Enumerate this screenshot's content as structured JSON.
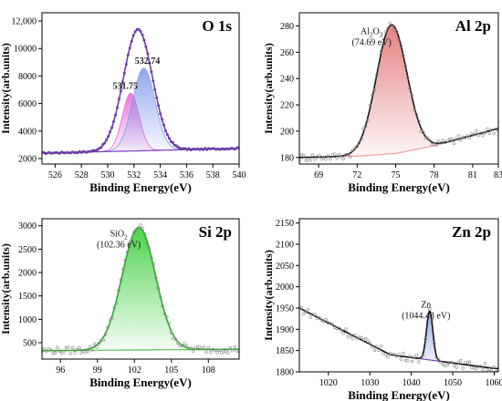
{
  "chart_data": [
    {
      "type": "line",
      "panel_label": "O 1s",
      "xlabel": "Binding Energy(eV)",
      "ylabel": "Intensity(arb.units)",
      "xlim": [
        525,
        540
      ],
      "ylim": [
        1600,
        12600
      ],
      "x_ticks": [
        526,
        528,
        530,
        532,
        534,
        536,
        538,
        540
      ],
      "y_ticks": [
        2000,
        4000,
        6000,
        8000,
        10000,
        12000
      ],
      "y_tick_labels": [
        "2000",
        "4000",
        "6000",
        "8000",
        "10000",
        "12,000"
      ],
      "background": {
        "x": [
          525,
          532,
          540
        ],
        "y": [
          2400,
          2550,
          2750
        ]
      },
      "peaks": [
        {
          "label": "531.75",
          "center": 531.75,
          "height": 4200,
          "fwhm": 1.5,
          "color": "#e75fd9"
        },
        {
          "label": "532.74",
          "center": 532.74,
          "height": 6000,
          "fwhm": 2.0,
          "color": "#7f98e6"
        }
      ],
      "envelope": {
        "center": 532.3,
        "height": 8800,
        "fwhm": 2.6,
        "color": "#6b3fa5"
      },
      "colors": {
        "background": "#7a3fc4",
        "marker": "#6b3fa5"
      }
    },
    {
      "type": "line",
      "panel_label": "Al 2p",
      "xlabel": "Binding Energy(eV)",
      "ylabel": "Intensity(arb.units)",
      "xlim": [
        67.5,
        83
      ],
      "ylim": [
        175,
        290
      ],
      "x_ticks": [
        69,
        72,
        75,
        78,
        81,
        83
      ],
      "y_ticks": [
        180,
        200,
        220,
        240,
        260,
        280
      ],
      "background": {
        "x": [
          67.5,
          72,
          75,
          78,
          83
        ],
        "y": [
          180,
          181,
          183,
          189,
          202
        ]
      },
      "peaks": [
        {
          "label": "Al2O3 (74.69 eV)",
          "label_main": "Al",
          "label_sub1": "2",
          "label_mid": "O",
          "label_sub2": "3",
          "label_value": "(74.69 eV)",
          "center": 74.69,
          "height": 98,
          "fwhm": 2.8,
          "color": "#e06a6a"
        }
      ],
      "colors": {
        "fit": "#1a1a1a",
        "background": "#f0a0a0",
        "marker": "#888888"
      }
    },
    {
      "type": "line",
      "panel_label": "Si 2p",
      "xlabel": "Binding Energy(eV)",
      "ylabel": "Intensity(arb.units)",
      "xlim": [
        94.5,
        110.5
      ],
      "ylim": [
        150,
        3150
      ],
      "x_ticks": [
        96,
        99,
        102,
        105,
        108
      ],
      "y_ticks": [
        500,
        1000,
        1500,
        2000,
        2500,
        3000
      ],
      "background": {
        "x": [
          94.5,
          110.5
        ],
        "y": [
          330,
          360
        ]
      },
      "peaks": [
        {
          "label": "SiO2 (102.36 eV)",
          "label_main": "SiO",
          "label_sub1": "2",
          "label_value": "(102.36 eV)",
          "center": 102.36,
          "height": 2620,
          "fwhm": 3.2,
          "color": "#2ecc2e"
        }
      ],
      "colors": {
        "fit": "#2ea82e",
        "background": "#58c058",
        "marker": "#888888"
      }
    },
    {
      "type": "line",
      "panel_label": "Zn 2p",
      "xlabel": "Binding Energy(eV)",
      "ylabel": "Intensity(arb.units)",
      "xlim": [
        1013,
        1061
      ],
      "ylim": [
        1800,
        2160
      ],
      "x_ticks": [
        1020,
        1030,
        1040,
        1050,
        1060
      ],
      "y_ticks": [
        1800,
        1850,
        1900,
        1950,
        2000,
        2050,
        2100,
        2150
      ],
      "background": {
        "x": [
          1013,
          1035,
          1060
        ],
        "y": [
          1950,
          1840,
          1808
        ]
      },
      "peaks": [
        {
          "label": "Zn (1044.43 eV)",
          "label_main": "Zn",
          "label_value": "(1044.43 eV)",
          "center": 1044.43,
          "height": 115,
          "fwhm": 1.8,
          "color": "#7f98e6"
        }
      ],
      "colors": {
        "fit": "#111111",
        "background": "#7a3fc4",
        "marker": "#888888"
      }
    }
  ]
}
